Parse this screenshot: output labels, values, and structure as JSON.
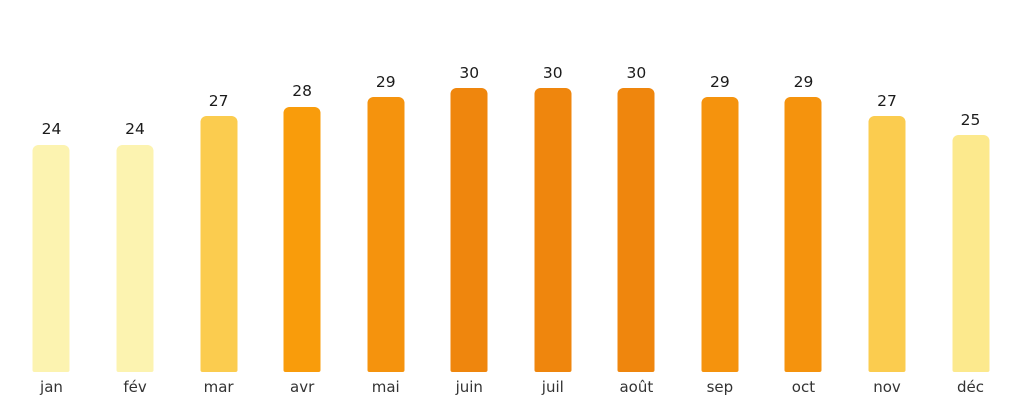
{
  "chart_data": {
    "type": "bar",
    "categories": [
      "jan",
      "fév",
      "mar",
      "avr",
      "mai",
      "juin",
      "juil",
      "août",
      "sep",
      "oct",
      "nov",
      "déc"
    ],
    "values": [
      24,
      24,
      27,
      28,
      29,
      30,
      30,
      30,
      29,
      29,
      27,
      25
    ],
    "bar_colors": [
      "#FCF3B0",
      "#FCF3B0",
      "#FBCC4F",
      "#F99C0B",
      "#F5930D",
      "#EF860D",
      "#EF860D",
      "#EF860D",
      "#F5930D",
      "#F5930D",
      "#FBCC4F",
      "#FCE98D"
    ],
    "title": "",
    "xlabel": "",
    "ylabel": "",
    "ylim": [
      0,
      32
    ],
    "grid": false,
    "legend": "none",
    "value_labels_shown": true,
    "background_color": "#FFFFFF",
    "value_label_color": "#1B1B1B",
    "category_label_color": "#333333"
  }
}
